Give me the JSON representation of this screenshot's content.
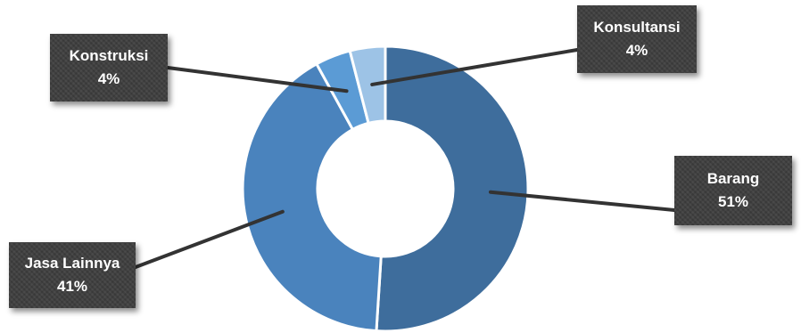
{
  "chart_data": {
    "type": "pie",
    "donut": true,
    "slices": [
      {
        "name": "Barang",
        "value": 51,
        "label": "51%",
        "color": "#3e6d9c"
      },
      {
        "name": "Jasa Lainnya",
        "value": 41,
        "label": "41%",
        "color": "#4a83bd"
      },
      {
        "name": "Konstruksi",
        "value": 4,
        "label": "4%",
        "color": "#5b9bd5"
      },
      {
        "name": "Konsultansi",
        "value": 4,
        "label": "4%",
        "color": "#9dc3e6"
      }
    ],
    "legend": "none",
    "data_labels": "callout"
  }
}
